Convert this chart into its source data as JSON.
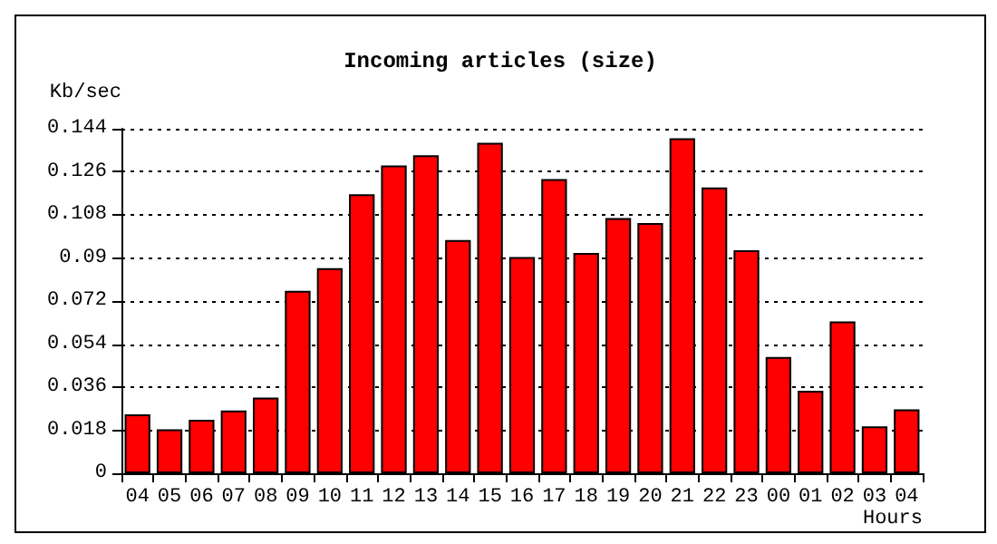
{
  "chart_data": {
    "type": "bar",
    "title": "Incoming articles (size)",
    "xlabel": "Hours",
    "ylabel": "Kb/sec",
    "categories": [
      "04",
      "05",
      "06",
      "07",
      "08",
      "09",
      "10",
      "11",
      "12",
      "13",
      "14",
      "15",
      "16",
      "17",
      "18",
      "19",
      "20",
      "21",
      "22",
      "23",
      "00",
      "01",
      "02",
      "03",
      "04"
    ],
    "values": [
      0.0246,
      0.0184,
      0.0224,
      0.0262,
      0.0316,
      0.0763,
      0.0857,
      0.1166,
      0.1287,
      0.1329,
      0.0975,
      0.1381,
      0.0904,
      0.123,
      0.0921,
      0.1067,
      0.1046,
      0.14,
      0.1195,
      0.0932,
      0.0486,
      0.0345,
      0.0635,
      0.0196,
      0.0267
    ],
    "color": "#ff0000",
    "ylim": [
      0,
      0.144
    ],
    "yticks": [
      0,
      0.018,
      0.036,
      0.054,
      0.072,
      0.09,
      0.108,
      0.126,
      0.144
    ],
    "grid": "y"
  }
}
